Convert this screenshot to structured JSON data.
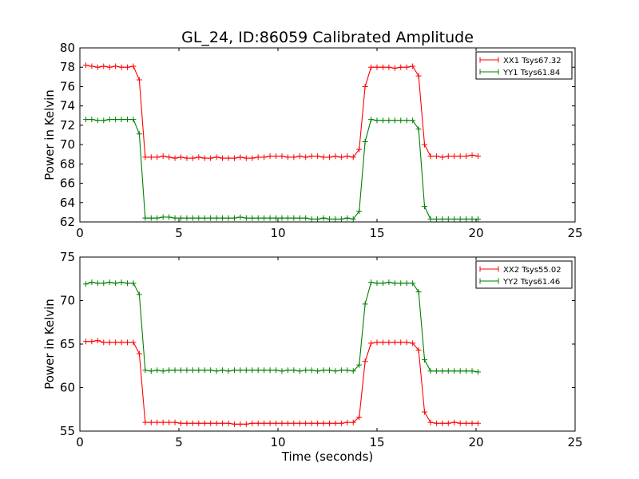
{
  "chart_data": [
    {
      "type": "line",
      "title": "GL_24, ID:86059 Calibrated Amplitude",
      "xlabel": "",
      "ylabel": "Power in Kelvin",
      "xlim": [
        0,
        25
      ],
      "ylim": [
        62,
        80
      ],
      "xticks": [
        "0",
        "5",
        "10",
        "15",
        "20",
        "25"
      ],
      "yticks": [
        "62",
        "64",
        "66",
        "68",
        "70",
        "72",
        "74",
        "76",
        "78",
        "80"
      ],
      "legend_position": "top-right",
      "x": [
        0.3,
        0.6,
        0.9,
        1.2,
        1.5,
        1.8,
        2.1,
        2.4,
        2.7,
        3.0,
        3.3,
        3.6,
        3.9,
        4.2,
        4.5,
        4.8,
        5.1,
        5.4,
        5.7,
        6.0,
        6.3,
        6.6,
        6.9,
        7.2,
        7.5,
        7.8,
        8.1,
        8.4,
        8.7,
        9.0,
        9.3,
        9.6,
        9.9,
        10.2,
        10.5,
        10.8,
        11.1,
        11.4,
        11.7,
        12.0,
        12.3,
        12.6,
        12.9,
        13.2,
        13.5,
        13.8,
        14.1,
        14.4,
        14.7,
        15.0,
        15.3,
        15.6,
        15.9,
        16.2,
        16.5,
        16.8,
        17.1,
        17.4,
        17.7,
        18.0,
        18.3,
        18.6,
        18.9,
        19.2,
        19.5,
        19.8,
        20.1
      ],
      "series": [
        {
          "name": "XX1 Tsys67.32",
          "color": "#ff0000",
          "values": [
            78.2,
            78.1,
            78.0,
            78.1,
            78.0,
            78.1,
            78.0,
            78.0,
            78.1,
            76.7,
            68.7,
            68.7,
            68.7,
            68.8,
            68.7,
            68.6,
            68.7,
            68.6,
            68.6,
            68.7,
            68.6,
            68.6,
            68.7,
            68.6,
            68.6,
            68.6,
            68.7,
            68.6,
            68.6,
            68.7,
            68.7,
            68.8,
            68.8,
            68.8,
            68.7,
            68.7,
            68.8,
            68.7,
            68.8,
            68.8,
            68.7,
            68.7,
            68.8,
            68.7,
            68.8,
            68.7,
            69.5,
            76.0,
            78.0,
            78.0,
            78.0,
            78.0,
            77.9,
            78.0,
            78.0,
            78.1,
            77.1,
            70.0,
            68.8,
            68.8,
            68.7,
            68.8,
            68.8,
            68.8,
            68.8,
            68.9,
            68.8
          ]
        },
        {
          "name": "YY1 Tsys61.84",
          "color": "#008000",
          "values": [
            72.6,
            72.6,
            72.5,
            72.5,
            72.6,
            72.6,
            72.6,
            72.6,
            72.6,
            71.1,
            62.4,
            62.4,
            62.4,
            62.5,
            62.5,
            62.4,
            62.4,
            62.4,
            62.4,
            62.4,
            62.4,
            62.4,
            62.4,
            62.4,
            62.4,
            62.4,
            62.5,
            62.4,
            62.4,
            62.4,
            62.4,
            62.4,
            62.4,
            62.4,
            62.4,
            62.4,
            62.4,
            62.4,
            62.3,
            62.3,
            62.4,
            62.3,
            62.3,
            62.3,
            62.4,
            62.3,
            63.1,
            70.3,
            72.6,
            72.5,
            72.5,
            72.5,
            72.5,
            72.5,
            72.5,
            72.5,
            71.6,
            63.6,
            62.3,
            62.3,
            62.3,
            62.3,
            62.3,
            62.3,
            62.3,
            62.3,
            62.3
          ]
        }
      ]
    },
    {
      "type": "line",
      "title": "",
      "xlabel": "Time (seconds)",
      "ylabel": "Power in Kelvin",
      "xlim": [
        0,
        25
      ],
      "ylim": [
        55,
        75
      ],
      "xticks": [
        "0",
        "5",
        "10",
        "15",
        "20",
        "25"
      ],
      "yticks": [
        "55",
        "60",
        "65",
        "70",
        "75"
      ],
      "legend_position": "top-right",
      "x": [
        0.3,
        0.6,
        0.9,
        1.2,
        1.5,
        1.8,
        2.1,
        2.4,
        2.7,
        3.0,
        3.3,
        3.6,
        3.9,
        4.2,
        4.5,
        4.8,
        5.1,
        5.4,
        5.7,
        6.0,
        6.3,
        6.6,
        6.9,
        7.2,
        7.5,
        7.8,
        8.1,
        8.4,
        8.7,
        9.0,
        9.3,
        9.6,
        9.9,
        10.2,
        10.5,
        10.8,
        11.1,
        11.4,
        11.7,
        12.0,
        12.3,
        12.6,
        12.9,
        13.2,
        13.5,
        13.8,
        14.1,
        14.4,
        14.7,
        15.0,
        15.3,
        15.6,
        15.9,
        16.2,
        16.5,
        16.8,
        17.1,
        17.4,
        17.7,
        18.0,
        18.3,
        18.6,
        18.9,
        19.2,
        19.5,
        19.8,
        20.1
      ],
      "series": [
        {
          "name": "XX2 Tsys55.02",
          "color": "#ff0000",
          "values": [
            65.3,
            65.3,
            65.4,
            65.2,
            65.2,
            65.2,
            65.2,
            65.2,
            65.2,
            63.9,
            56.0,
            56.0,
            56.0,
            56.0,
            56.0,
            56.0,
            55.9,
            55.9,
            55.9,
            55.9,
            55.9,
            55.9,
            55.9,
            55.9,
            55.9,
            55.8,
            55.8,
            55.8,
            55.9,
            55.9,
            55.9,
            55.9,
            55.9,
            55.9,
            55.9,
            55.9,
            55.9,
            55.9,
            55.9,
            55.9,
            55.9,
            55.9,
            55.9,
            55.9,
            56.0,
            56.0,
            56.6,
            63.0,
            65.1,
            65.2,
            65.2,
            65.2,
            65.2,
            65.2,
            65.2,
            65.1,
            64.3,
            57.2,
            56.0,
            55.9,
            55.9,
            55.9,
            56.0,
            55.9,
            55.9,
            55.9,
            55.9
          ]
        },
        {
          "name": "YY2 Tsys61.46",
          "color": "#008000",
          "values": [
            71.9,
            72.1,
            72.0,
            72.0,
            72.1,
            72.0,
            72.1,
            72.0,
            72.0,
            70.7,
            62.0,
            61.9,
            62.0,
            61.9,
            62.0,
            62.0,
            62.0,
            62.0,
            62.0,
            62.0,
            62.0,
            62.0,
            61.9,
            62.0,
            61.9,
            62.0,
            62.0,
            62.0,
            62.0,
            62.0,
            62.0,
            62.0,
            62.0,
            61.9,
            62.0,
            62.0,
            61.9,
            62.0,
            62.0,
            61.9,
            62.0,
            62.0,
            61.9,
            62.0,
            62.0,
            61.9,
            62.6,
            69.6,
            72.1,
            72.0,
            72.0,
            72.1,
            72.0,
            72.0,
            72.0,
            72.0,
            71.0,
            63.2,
            61.9,
            61.9,
            61.9,
            61.9,
            61.9,
            61.9,
            61.9,
            61.9,
            61.8
          ]
        }
      ]
    }
  ]
}
